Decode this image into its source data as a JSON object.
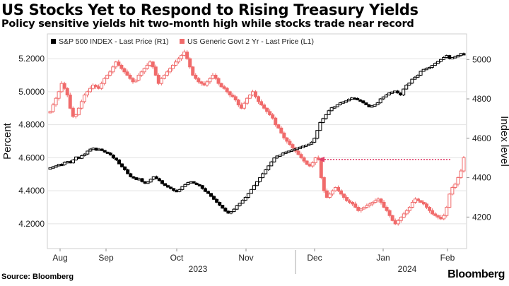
{
  "title": "US Stocks Yet to Respond to Rising Treasury Yields",
  "subtitle": "Policy sensitive yields hit two-month high while stocks trade near record",
  "source": "Source: Bloomberg",
  "brand": "Bloomberg",
  "chart_data": {
    "type": "candlestick",
    "legend": [
      "S&P 500 INDEX - Last Price (R1)",
      "US Generic Govt 2 Yr - Last Price (L1)"
    ],
    "legend_placement": "top-left",
    "left_axis": {
      "label": "Percent",
      "min": 4.05,
      "max": 5.35,
      "ticks": [
        "4.2000",
        "4.4000",
        "4.6000",
        "4.8000",
        "5.0000",
        "5.2000"
      ]
    },
    "right_axis": {
      "label": "Index level",
      "min": 4040,
      "max": 5130,
      "ticks": [
        "4200",
        "4400",
        "4600",
        "4800",
        "5000"
      ]
    },
    "x_axis": {
      "months": [
        "Aug",
        "Sep",
        "Oct",
        "Nov",
        "Dec",
        "Jan",
        "Feb"
      ],
      "years": [
        "2023",
        "2024"
      ]
    },
    "annotation": "arrow pointing left at the 2-year yield level of about 4.59",
    "series": [
      {
        "name": "S&P 500 INDEX - Last Price (R1)",
        "axis": "right",
        "color": "#000000",
        "values": [
          4450,
          4455,
          4460,
          4468,
          4465,
          4478,
          4482,
          4475,
          4490,
          4505,
          4498,
          4512,
          4520,
          4535,
          4545,
          4550,
          4540,
          4545,
          4538,
          4530,
          4525,
          4515,
          4500,
          4490,
          4470,
          4455,
          4440,
          4420,
          4405,
          4400,
          4390,
          4395,
          4380,
          4372,
          4378,
          4392,
          4405,
          4395,
          4385,
          4370,
          4360,
          4352,
          4345,
          4335,
          4330,
          4340,
          4355,
          4365,
          4375,
          4380,
          4372,
          4365,
          4360,
          4345,
          4330,
          4320,
          4305,
          4290,
          4275,
          4260,
          4245,
          4230,
          4220,
          4228,
          4240,
          4258,
          4270,
          4285,
          4300,
          4320,
          4340,
          4360,
          4380,
          4400,
          4420,
          4440,
          4460,
          4480,
          4500,
          4510,
          4515,
          4525,
          4530,
          4535,
          4540,
          4545,
          4550,
          4555,
          4560,
          4565,
          4570,
          4580,
          4600,
          4640,
          4680,
          4700,
          4720,
          4740,
          4755,
          4760,
          4770,
          4780,
          4785,
          4790,
          4798,
          4805,
          4802,
          4795,
          4790,
          4780,
          4770,
          4760,
          4765,
          4770,
          4780,
          4800,
          4810,
          4820,
          4830,
          4835,
          4840,
          4830,
          4820,
          4850,
          4870,
          4880,
          4900,
          4910,
          4920,
          4940,
          4950,
          4955,
          4960,
          4970,
          4980,
          4990,
          5000,
          5010,
          5020,
          5005,
          5010,
          5015,
          5020,
          5030,
          5025
        ]
      },
      {
        "name": "US Generic Govt 2 Yr - Last Price (L1)",
        "axis": "left",
        "color": "#f06b6b",
        "values": [
          4.88,
          4.92,
          4.96,
          5.0,
          5.05,
          5.02,
          4.98,
          4.9,
          4.85,
          4.86,
          4.9,
          4.94,
          4.98,
          5.0,
          5.02,
          5.04,
          5.03,
          5.02,
          5.05,
          5.08,
          5.1,
          5.12,
          5.15,
          5.18,
          5.16,
          5.14,
          5.12,
          5.1,
          5.08,
          5.06,
          5.07,
          5.1,
          5.12,
          5.14,
          5.16,
          5.18,
          5.15,
          5.1,
          5.05,
          5.08,
          5.1,
          5.12,
          5.14,
          5.16,
          5.18,
          5.2,
          5.22,
          5.24,
          5.2,
          5.15,
          5.1,
          5.08,
          5.06,
          5.05,
          5.04,
          5.06,
          5.08,
          5.1,
          5.08,
          5.05,
          5.03,
          5.02,
          5.0,
          4.98,
          4.97,
          4.95,
          4.92,
          4.9,
          4.93,
          4.96,
          4.98,
          5.0,
          4.97,
          4.94,
          4.92,
          4.9,
          4.88,
          4.86,
          4.84,
          4.8,
          4.78,
          4.75,
          4.72,
          4.7,
          4.68,
          4.66,
          4.64,
          4.62,
          4.6,
          4.58,
          4.56,
          4.55,
          4.57,
          4.6,
          4.59,
          4.48,
          4.4,
          4.36,
          4.38,
          4.4,
          4.42,
          4.4,
          4.38,
          4.36,
          4.34,
          4.33,
          4.32,
          4.3,
          4.28,
          4.29,
          4.3,
          4.31,
          4.32,
          4.33,
          4.34,
          4.35,
          4.33,
          4.3,
          4.28,
          4.25,
          4.22,
          4.2,
          4.22,
          4.24,
          4.26,
          4.28,
          4.3,
          4.33,
          4.35,
          4.34,
          4.33,
          4.32,
          4.3,
          4.28,
          4.26,
          4.25,
          4.24,
          4.23,
          4.25,
          4.3,
          4.38,
          4.42,
          4.44,
          4.48,
          4.52,
          4.6
        ]
      }
    ]
  }
}
